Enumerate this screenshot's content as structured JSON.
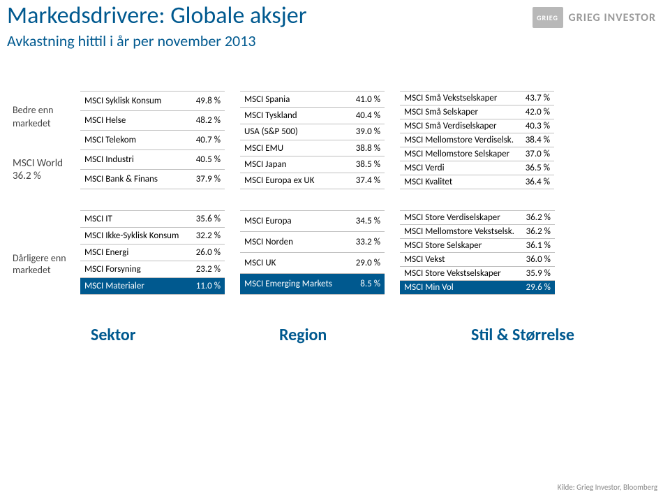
{
  "header": {
    "title": "Markedsdrivere: Globale aksjer",
    "subtitle": "Avkastning hittil i år per november 2013",
    "brand_text": "GRIEG INVESTOR",
    "brand_short": "GRIEG"
  },
  "colors": {
    "primary": "#00598f",
    "highlight_bg": "#00598f",
    "highlight_fg": "#ffffff",
    "border": "#bfbfbf",
    "body_text": "#444444"
  },
  "labels": {
    "better": "Bedre enn",
    "better2": "markedet",
    "world_line1": "MSCI World",
    "world_line2": "36.2 %",
    "worse": "Dårligere enn",
    "worse2": "markedet",
    "sector": "Sektor",
    "region": "Region",
    "style": "Stil & Størrelse",
    "source": "Kilde: Grieg Investor, Bloomberg"
  },
  "upper": {
    "sector": [
      {
        "name": "MSCI Syklisk Konsum",
        "val": "49.8 %"
      },
      {
        "name": "MSCI Helse",
        "val": "48.2 %"
      },
      {
        "name": "MSCI Telekom",
        "val": "40.7 %"
      },
      {
        "name": "MSCI Industri",
        "val": "40.5 %"
      },
      {
        "name": "MSCI Bank & Finans",
        "val": "37.9 %"
      }
    ],
    "region": [
      {
        "name": "MSCI Spania",
        "val": "41.0 %"
      },
      {
        "name": "MSCI Tyskland",
        "val": "40.4 %"
      },
      {
        "name": "USA (S&P 500)",
        "val": "39.0 %"
      },
      {
        "name": "MSCI EMU",
        "val": "38.8 %"
      },
      {
        "name": "MSCI Japan",
        "val": "38.5 %"
      },
      {
        "name": "MSCI Europa ex UK",
        "val": "37.4 %"
      }
    ],
    "style": [
      {
        "name": "MSCI Små Vekstselskaper",
        "val": "43.7 %"
      },
      {
        "name": "MSCI Små Selskaper",
        "val": "42.0 %"
      },
      {
        "name": "MSCI Små Verdiselskaper",
        "val": "40.3 %"
      },
      {
        "name": "MSCI Mellomstore Verdiselsk.",
        "val": "38.4 %"
      },
      {
        "name": "MSCI Mellomstore Selskaper",
        "val": "37.0 %"
      },
      {
        "name": "MSCI Verdi",
        "val": "36.5 %"
      },
      {
        "name": "MSCI Kvalitet",
        "val": "36.4 %"
      }
    ]
  },
  "lower": {
    "sector": [
      {
        "name": "MSCI IT",
        "val": "35.6 %"
      },
      {
        "name": "MSCI Ikke-Syklisk Konsum",
        "val": "32.2 %"
      },
      {
        "name": "MSCI Energi",
        "val": "26.0 %"
      },
      {
        "name": "MSCI Forsyning",
        "val": "23.2 %"
      },
      {
        "name": "MSCI Materialer",
        "val": "11.0 %",
        "hl": true
      }
    ],
    "region": [
      {
        "name": "MSCI Europa",
        "val": "34.5 %"
      },
      {
        "name": "MSCI Norden",
        "val": "33.2 %"
      },
      {
        "name": "MSCI UK",
        "val": "29.0 %"
      },
      {
        "name": "MSCI Emerging Markets",
        "val": "8.5 %",
        "hl": true
      }
    ],
    "style": [
      {
        "name": "MSCI Store Verdiselskaper",
        "val": "36.2 %"
      },
      {
        "name": "MSCI Mellomstore Vekstselsk.",
        "val": "36.2 %"
      },
      {
        "name": "MSCI Store Selskaper",
        "val": "36.1 %"
      },
      {
        "name": "MSCI Vekst",
        "val": "36.0 %"
      },
      {
        "name": "MSCI Store Vekstselskaper",
        "val": "35.9 %"
      },
      {
        "name": "MSCI Min Vol",
        "val": "29.6 %",
        "hl": true
      }
    ]
  }
}
